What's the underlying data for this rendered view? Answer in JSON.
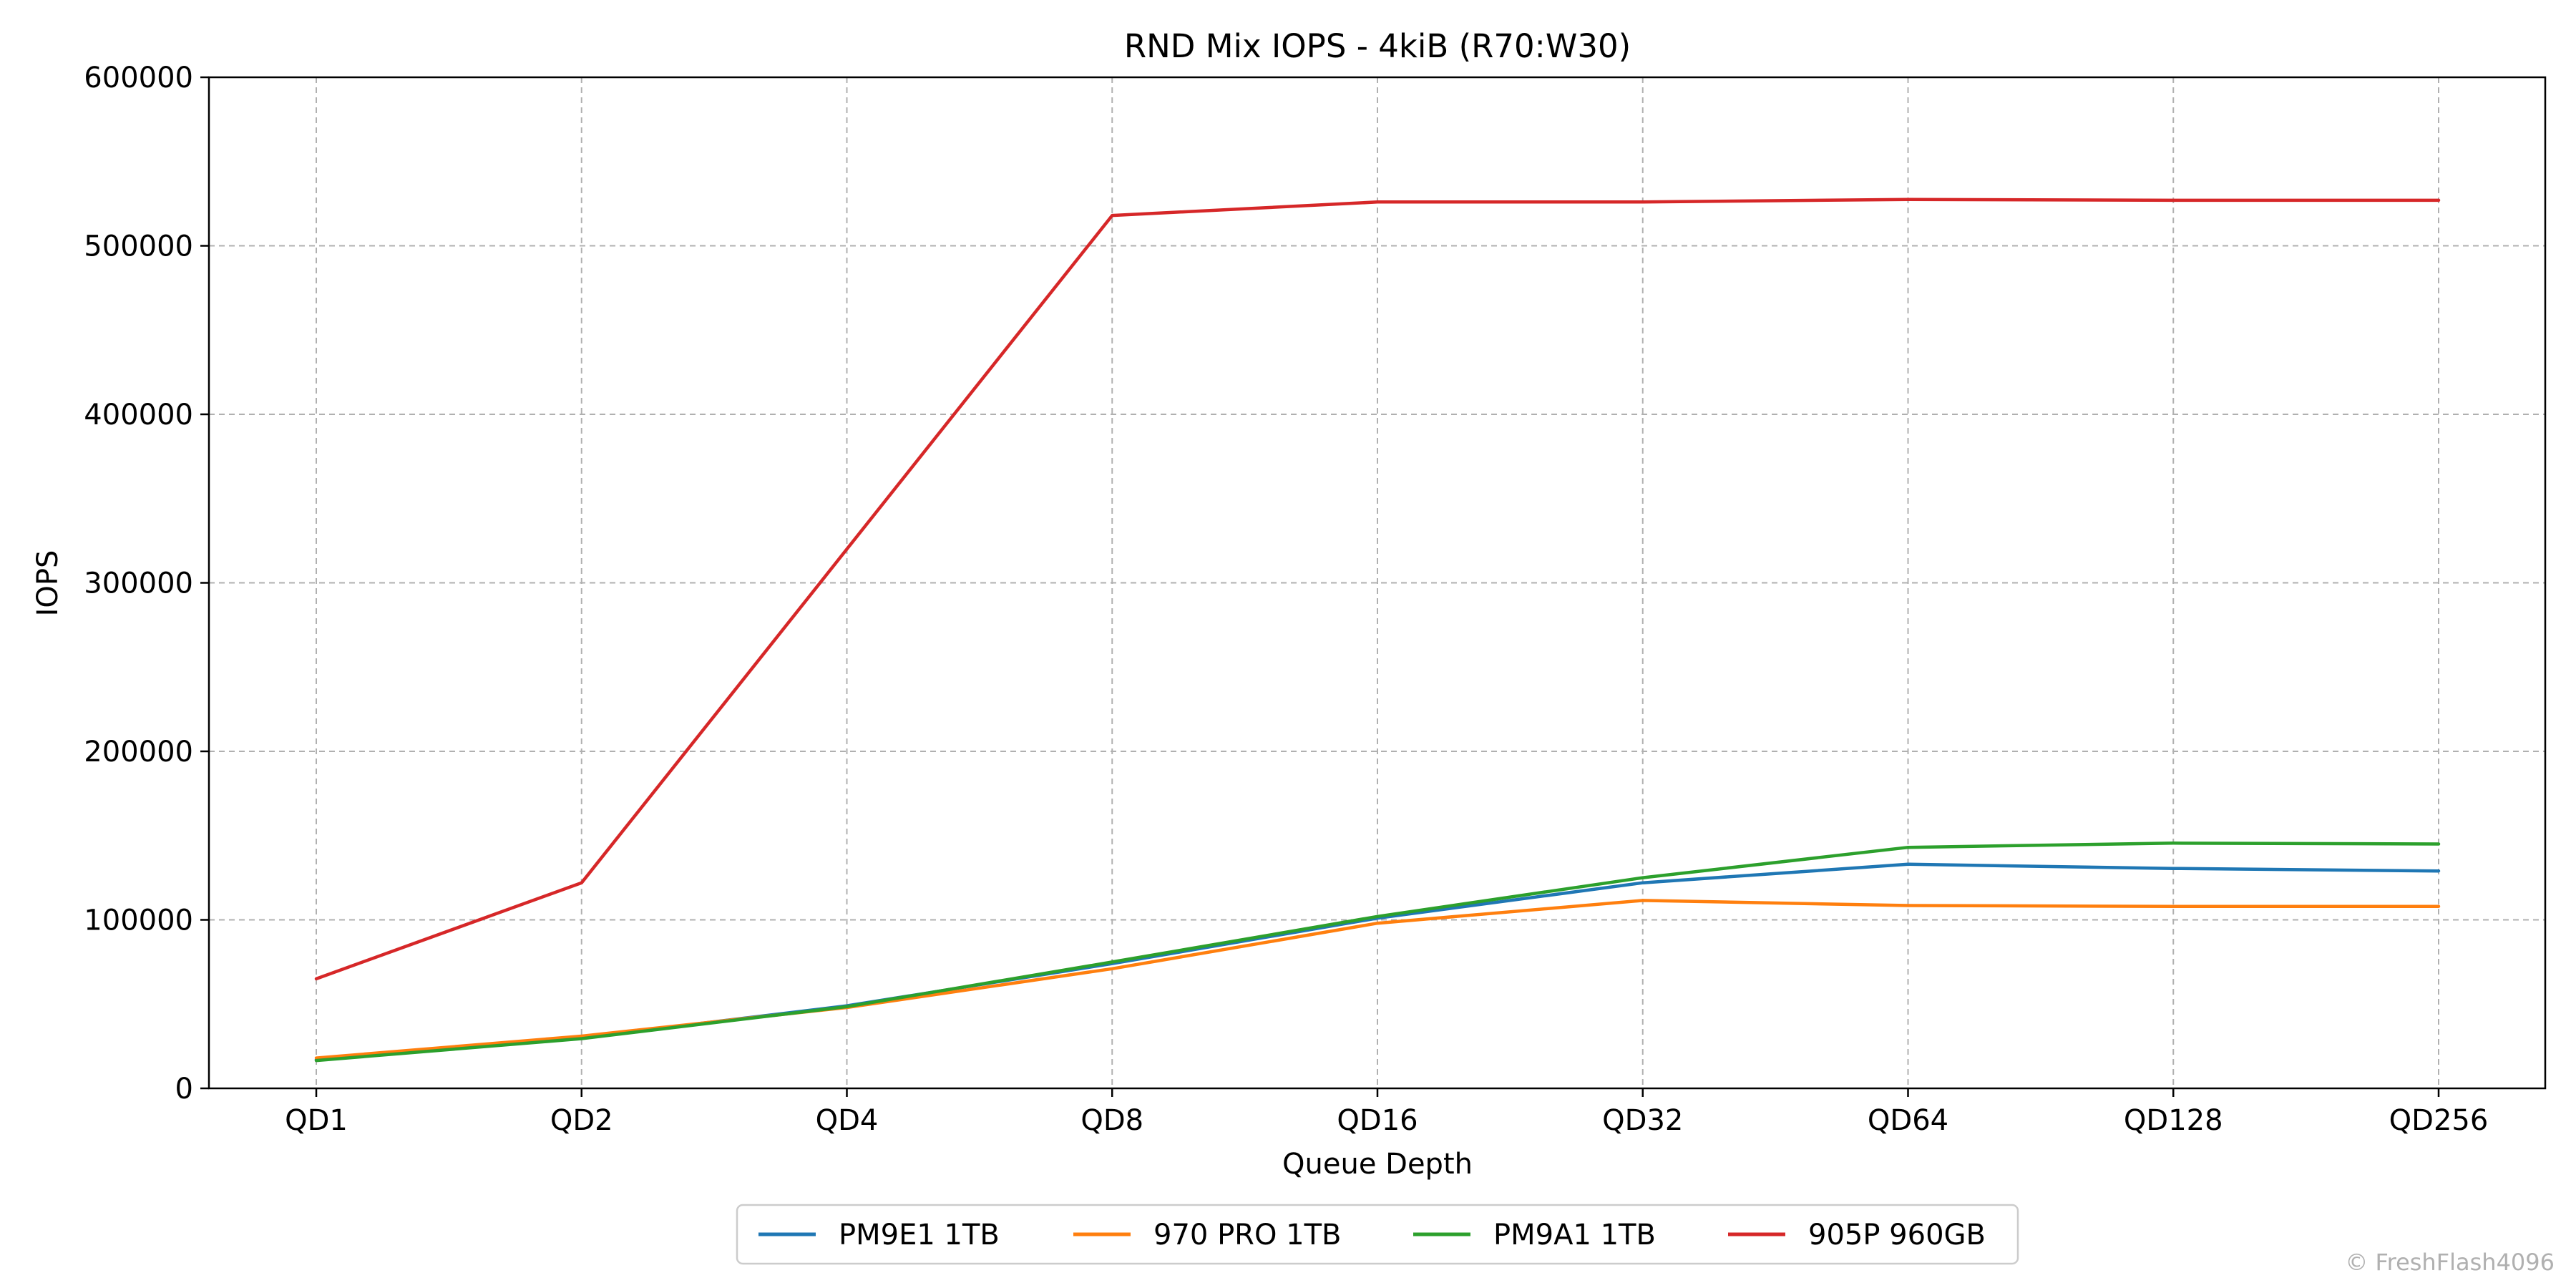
{
  "chart_data": {
    "type": "line",
    "title": "RND Mix IOPS - 4kiB (R70:W30)",
    "xlabel": "Queue Depth",
    "ylabel": "IOPS",
    "categories": [
      "QD1",
      "QD2",
      "QD4",
      "QD8",
      "QD16",
      "QD32",
      "QD64",
      "QD128",
      "QD256"
    ],
    "ylim": [
      0,
      600000
    ],
    "yticks": [
      0,
      100000,
      200000,
      300000,
      400000,
      500000,
      600000
    ],
    "grid": true,
    "legend_position": "bottom-center",
    "series": [
      {
        "name": "PM9E1 1TB",
        "color": "#1f77b4",
        "values": [
          17000,
          30000,
          49000,
          74000,
          101000,
          122000,
          133000,
          130500,
          129000
        ]
      },
      {
        "name": "970 PRO 1TB",
        "color": "#ff7f0e",
        "values": [
          18000,
          31000,
          48000,
          71000,
          98000,
          111500,
          108500,
          108000,
          108000
        ]
      },
      {
        "name": "PM9A1 1TB",
        "color": "#2ca02c",
        "values": [
          16500,
          29500,
          48500,
          75000,
          102000,
          125000,
          143000,
          145500,
          145000
        ]
      },
      {
        "name": "905P 960GB",
        "color": "#d62728",
        "values": [
          65000,
          122000,
          320000,
          518000,
          526000,
          526000,
          527500,
          527000,
          527000
        ]
      }
    ]
  },
  "watermark": "© FreshFlash4096"
}
